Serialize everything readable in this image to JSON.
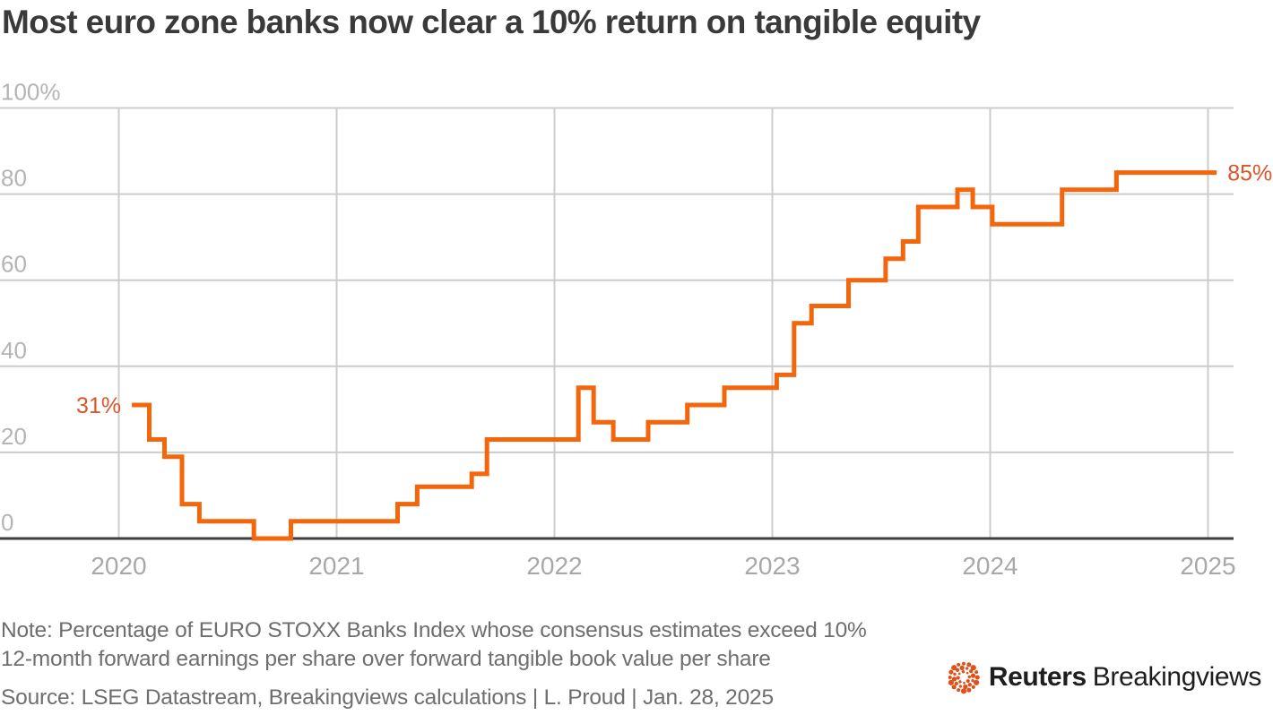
{
  "title": "Most euro zone banks now clear a 10% return on tangible equity",
  "note": {
    "line1": "Note: Percentage of EURO STOXX Banks Index whose consensus estimates exceed 10%",
    "line2": "12-month forward earnings per share over forward tangible book value per share",
    "source": "Source: LSEG Datastream, Breakingviews calculations | L. Proud | Jan. 28, 2025"
  },
  "logo": {
    "reuters": "Reuters",
    "breakingviews": "Breakingviews",
    "dots_color": "#DE521D"
  },
  "chart_data": {
    "type": "line",
    "step_style": "step-after",
    "title": "Most euro zone banks now clear a 10% return on tangible equity",
    "xlabel": "",
    "ylabel": "",
    "xlim": [
      2019.45,
      2025.16
    ],
    "ylim": [
      0,
      100
    ],
    "grid": true,
    "x_ticks": [
      2020,
      2021,
      2022,
      2023,
      2024,
      2025
    ],
    "y_ticks": [
      100,
      80,
      60,
      40,
      20,
      0
    ],
    "y_tick_labels": [
      "100%",
      "80",
      "60",
      "40",
      "20",
      "0"
    ],
    "series": [
      {
        "name": "Percentage of EURO STOXX Banks Index members whose consensus forward return on tangible equity exceeds 10%",
        "end_x": 2025.04,
        "points": [
          [
            2020.06,
            31
          ],
          [
            2020.14,
            23
          ],
          [
            2020.21,
            19
          ],
          [
            2020.29,
            8
          ],
          [
            2020.37,
            4
          ],
          [
            2020.62,
            0
          ],
          [
            2020.79,
            4
          ],
          [
            2021.28,
            8
          ],
          [
            2021.37,
            12
          ],
          [
            2021.62,
            15
          ],
          [
            2021.69,
            23
          ],
          [
            2022.11,
            35
          ],
          [
            2022.18,
            27
          ],
          [
            2022.27,
            23
          ],
          [
            2022.43,
            27
          ],
          [
            2022.61,
            31
          ],
          [
            2022.78,
            35
          ],
          [
            2023.02,
            38
          ],
          [
            2023.1,
            50
          ],
          [
            2023.18,
            54
          ],
          [
            2023.35,
            60
          ],
          [
            2023.52,
            65
          ],
          [
            2023.6,
            69
          ],
          [
            2023.67,
            77
          ],
          [
            2023.85,
            81
          ],
          [
            2023.92,
            77
          ],
          [
            2024.01,
            73
          ],
          [
            2024.33,
            81
          ],
          [
            2024.58,
            85
          ]
        ]
      }
    ],
    "annotations": [
      {
        "label": "31%",
        "x": 2020.06,
        "value": 31,
        "side": "left"
      },
      {
        "label": "85%",
        "x": 2025.04,
        "value": 85,
        "side": "right"
      }
    ],
    "colors": {
      "line": "#F4660B",
      "annotation": "#DC5528",
      "grid": "#CCCCCC",
      "axis": "#3E3E3E",
      "y_tick": "#B4B4B6",
      "x_tick": "#A8A8A8"
    }
  }
}
